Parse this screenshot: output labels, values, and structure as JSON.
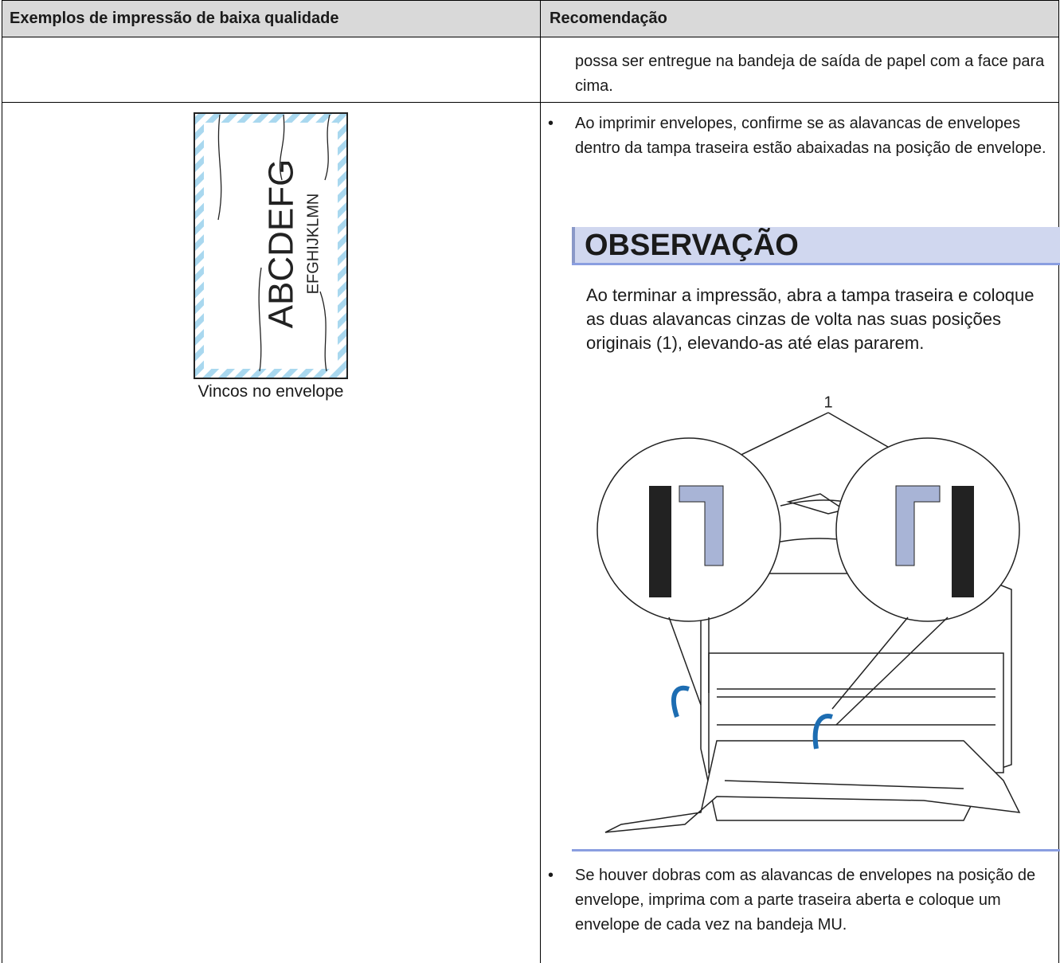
{
  "table": {
    "header": [
      "Exemplos de impressão de baixa qualidade",
      "Recomendação"
    ],
    "rows": [
      {
        "recommendation": "possa ser entregue na bandeja de saída de papel com a face para cima."
      },
      {
        "example": {
          "letters": "ABCDEFG",
          "letters_small": "EFGHIJKLMN",
          "caption": "Vincos no envelope"
        },
        "recommendation": {
          "bullets": [
            "Ao imprimir envelopes, confirme se as alavancas de envelopes dentro da tampa traseira estão abaixadas na posição de envelope.",
            "Se houver dobras com as alavancas de envelopes na posição de envelope, imprima com a parte traseira aberta e coloque um envelope de cada vez na bandeja MU."
          ],
          "note": {
            "title": "OBSERVAÇÃO",
            "text": "Ao terminar a impressão, abra a tampa traseira e coloque as duas alavancas cinzas de volta nas suas posições originais (1), elevando-as até elas pararem.",
            "callout": "1"
          }
        }
      }
    ]
  }
}
